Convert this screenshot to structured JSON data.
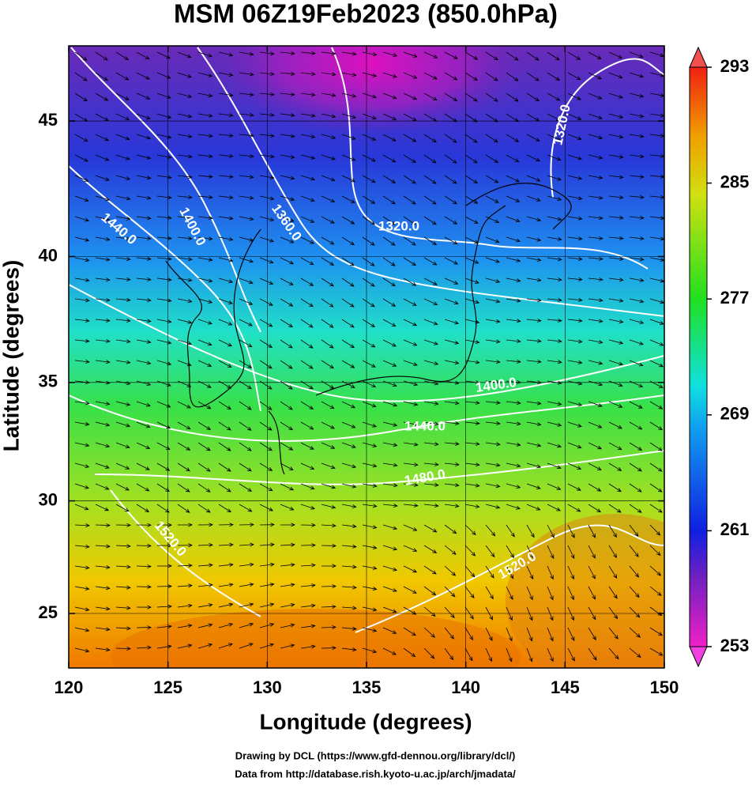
{
  "chart_data": {
    "type": "map",
    "title": "MSM 06Z19Feb2023 (850.0hPa)",
    "x_label": "Longitude (degrees)",
    "y_label": "Latitude  (degrees)",
    "xlim": [
      120,
      150
    ],
    "ylim": [
      22.5,
      47.6
    ],
    "xticks": [
      120,
      125,
      130,
      135,
      140,
      145,
      150
    ],
    "yticks": [
      25,
      30,
      35,
      40,
      45
    ],
    "projection": "mercator",
    "grid": true,
    "colorbar": {
      "lim": [
        253,
        293
      ],
      "ticks": [
        253,
        261,
        269,
        277,
        285,
        293
      ]
    },
    "contour_labels": [
      "1440.0",
      "1400.0",
      "1360.0",
      "1320.0",
      "1320.0",
      "1400.0",
      "1440.0",
      "1480.0",
      "1520.0",
      "1520.0"
    ]
  },
  "footer": [
    "Drawing by DCL (https://www.gfd-dennou.org/library/dcl/)",
    "Data from http://database.rish.kyoto-u.ac.jp/arch/jmadata/"
  ]
}
